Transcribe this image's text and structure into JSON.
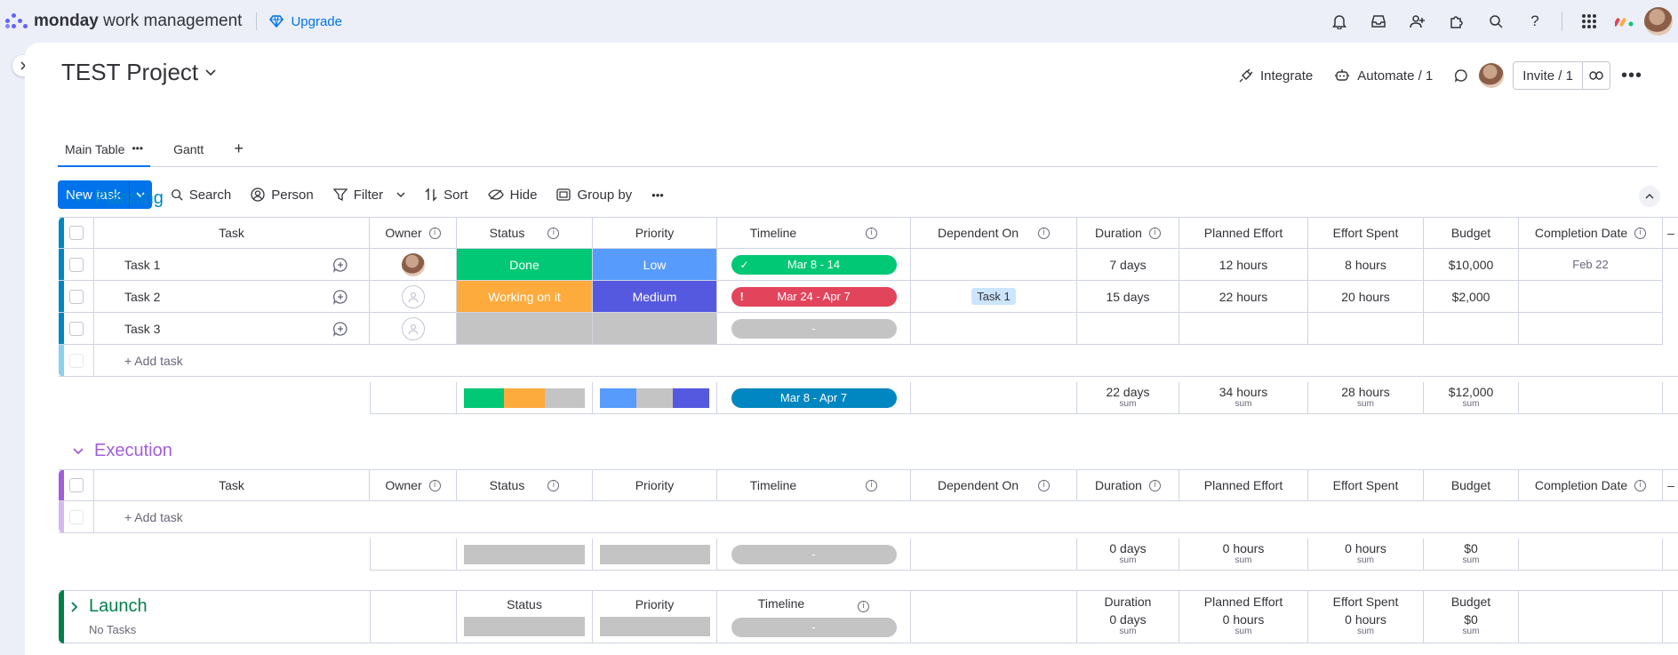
{
  "brand": {
    "name_bold": "monday",
    "name_rest": " work management",
    "upgrade": "Upgrade"
  },
  "project": {
    "title": "TEST Project"
  },
  "header_actions": {
    "integrate": "Integrate",
    "automate": "Automate / 1",
    "invite": "Invite / 1"
  },
  "views": [
    {
      "label": "Main Table"
    },
    {
      "label": "Gantt"
    }
  ],
  "toolbar": {
    "new_task": "New task",
    "search": "Search",
    "person": "Person",
    "filter": "Filter",
    "sort": "Sort",
    "hide": "Hide",
    "group_by": "Group by"
  },
  "columns": {
    "task": "Task",
    "owner": "Owner",
    "status": "Status",
    "priority": "Priority",
    "timeline": "Timeline",
    "dependent_on": "Dependent On",
    "duration": "Duration",
    "planned_effort": "Planned Effort",
    "effort_spent": "Effort Spent",
    "budget": "Budget",
    "completion_date": "Completion Date"
  },
  "add_task": "+ Add task",
  "sum_label": "sum",
  "colors": {
    "done": "#00c875",
    "working": "#fdab3d",
    "empty": "#c4c4c4",
    "low": "#579bfc",
    "medium": "#5559df",
    "timeline_done": "#00c875",
    "timeline_late": "#e2445c",
    "timeline_summary": "#0086c0",
    "planning": "#0086c0",
    "execution": "#a25ddc",
    "launch": "#037f4c"
  },
  "planning": {
    "title": "Planning",
    "tasks": [
      {
        "name": "Task 1",
        "status": "Done",
        "priority": "Low",
        "timeline": "Mar 8 - 14",
        "dependent_on": "",
        "duration": "7 days",
        "planned_effort": "12 hours",
        "effort_spent": "8 hours",
        "budget": "$10,000",
        "completion_date": "Feb 22"
      },
      {
        "name": "Task 2",
        "status": "Working on it",
        "priority": "Medium",
        "timeline": "Mar 24 - Apr 7",
        "dependent_on": "Task 1",
        "duration": "15 days",
        "planned_effort": "22 hours",
        "effort_spent": "20 hours",
        "budget": "$2,000",
        "completion_date": ""
      },
      {
        "name": "Task 3",
        "status": "",
        "priority": "",
        "timeline": "-",
        "dependent_on": "",
        "duration": "",
        "planned_effort": "",
        "effort_spent": "",
        "budget": "",
        "completion_date": ""
      }
    ],
    "summary": {
      "timeline": "Mar 8 - Apr 7",
      "duration": "22 days",
      "planned_effort": "34 hours",
      "effort_spent": "28 hours",
      "budget": "$12,000"
    }
  },
  "execution": {
    "title": "Execution",
    "summary": {
      "timeline": "-",
      "duration": "0 days",
      "planned_effort": "0 hours",
      "effort_spent": "0 hours",
      "budget": "$0"
    }
  },
  "launch": {
    "title": "Launch",
    "subtitle": "No Tasks",
    "summary": {
      "timeline": "-",
      "duration": "0 days",
      "planned_effort": "0 hours",
      "effort_spent": "0 hours",
      "budget": "$0"
    }
  }
}
